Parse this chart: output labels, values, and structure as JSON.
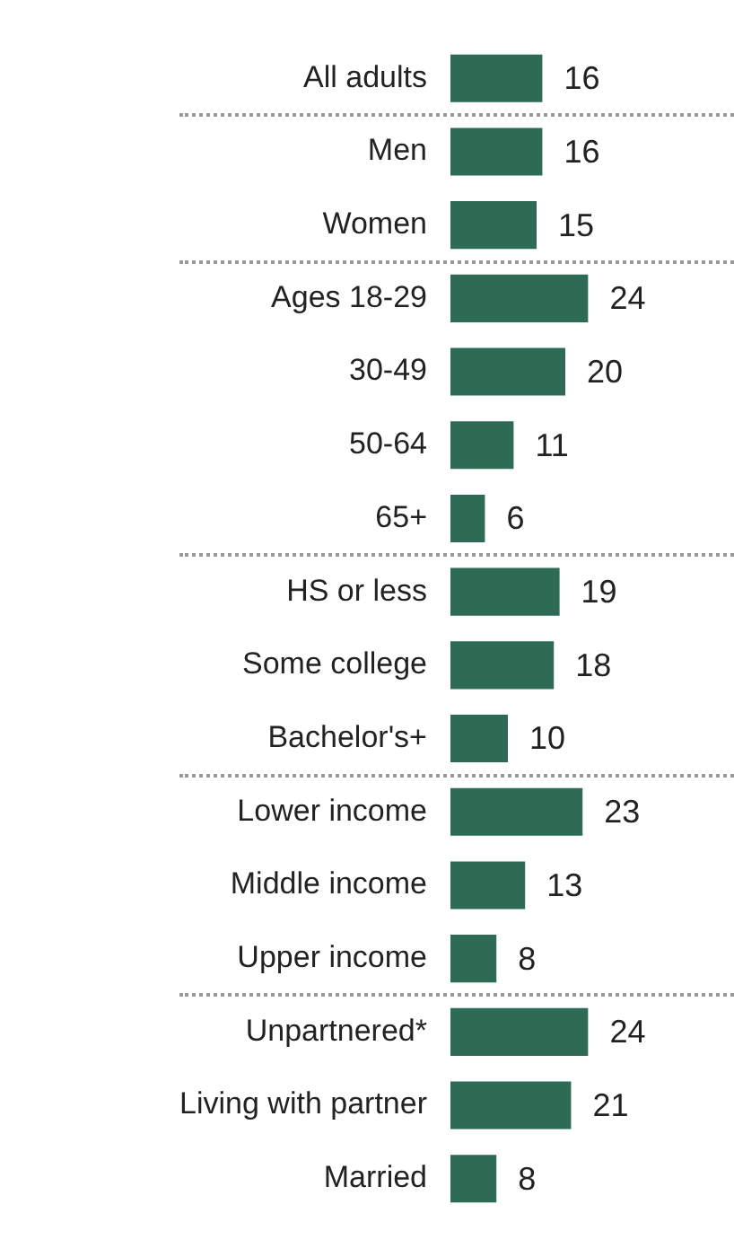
{
  "chart_data": {
    "type": "bar",
    "orientation": "horizontal",
    "categories": [
      "All adults",
      "Men",
      "Women",
      "Ages 18-29",
      "30-49",
      "50-64",
      "65+",
      "HS or less",
      "Some college",
      "Bachelor's+",
      "Lower income",
      "Middle income",
      "Upper income",
      "Unpartnered*",
      "Living with partner",
      "Married"
    ],
    "values": [
      16,
      16,
      15,
      24,
      20,
      11,
      6,
      19,
      18,
      10,
      23,
      13,
      8,
      24,
      21,
      8
    ],
    "color": "#2e6b55",
    "data_labels": true,
    "legend": false
  }
}
